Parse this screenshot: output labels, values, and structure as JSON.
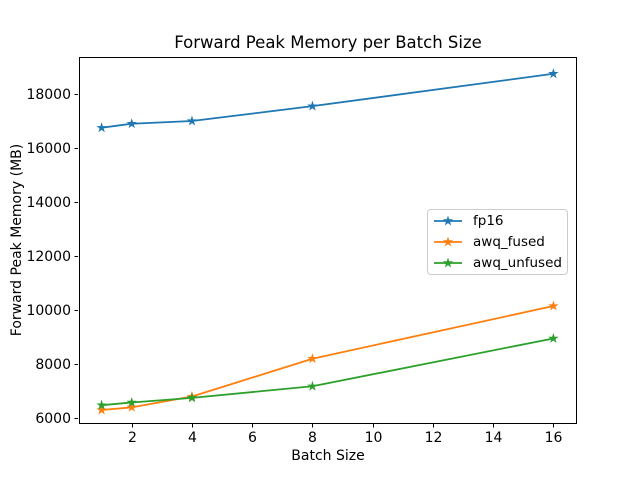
{
  "chart_data": {
    "type": "line",
    "title": "Forward Peak Memory per Batch Size",
    "xlabel": "Batch Size",
    "ylabel": "Forward Peak Memory (MB)",
    "x": [
      1,
      2,
      4,
      8,
      16
    ],
    "series": [
      {
        "name": "fp16",
        "color": "#1f77b4",
        "values": [
          16750,
          16900,
          17000,
          17550,
          18750
        ]
      },
      {
        "name": "awq_fused",
        "color": "#ff7f0e",
        "values": [
          6300,
          6400,
          6800,
          8200,
          10150
        ]
      },
      {
        "name": "awq_unfused",
        "color": "#2ca02c",
        "values": [
          6480,
          6580,
          6750,
          7180,
          8950
        ]
      }
    ],
    "x_ticks": [
      2,
      4,
      6,
      8,
      10,
      12,
      14,
      16
    ],
    "y_ticks": [
      6000,
      8000,
      10000,
      12000,
      14000,
      16000,
      18000
    ],
    "xlim": [
      0.25,
      16.75
    ],
    "ylim": [
      5820,
      19370
    ],
    "marker": "star",
    "grid": false,
    "legend_position": "center-right",
    "background_color": "#ffffff",
    "spine_color": "#000000",
    "text_color": "#000000"
  }
}
